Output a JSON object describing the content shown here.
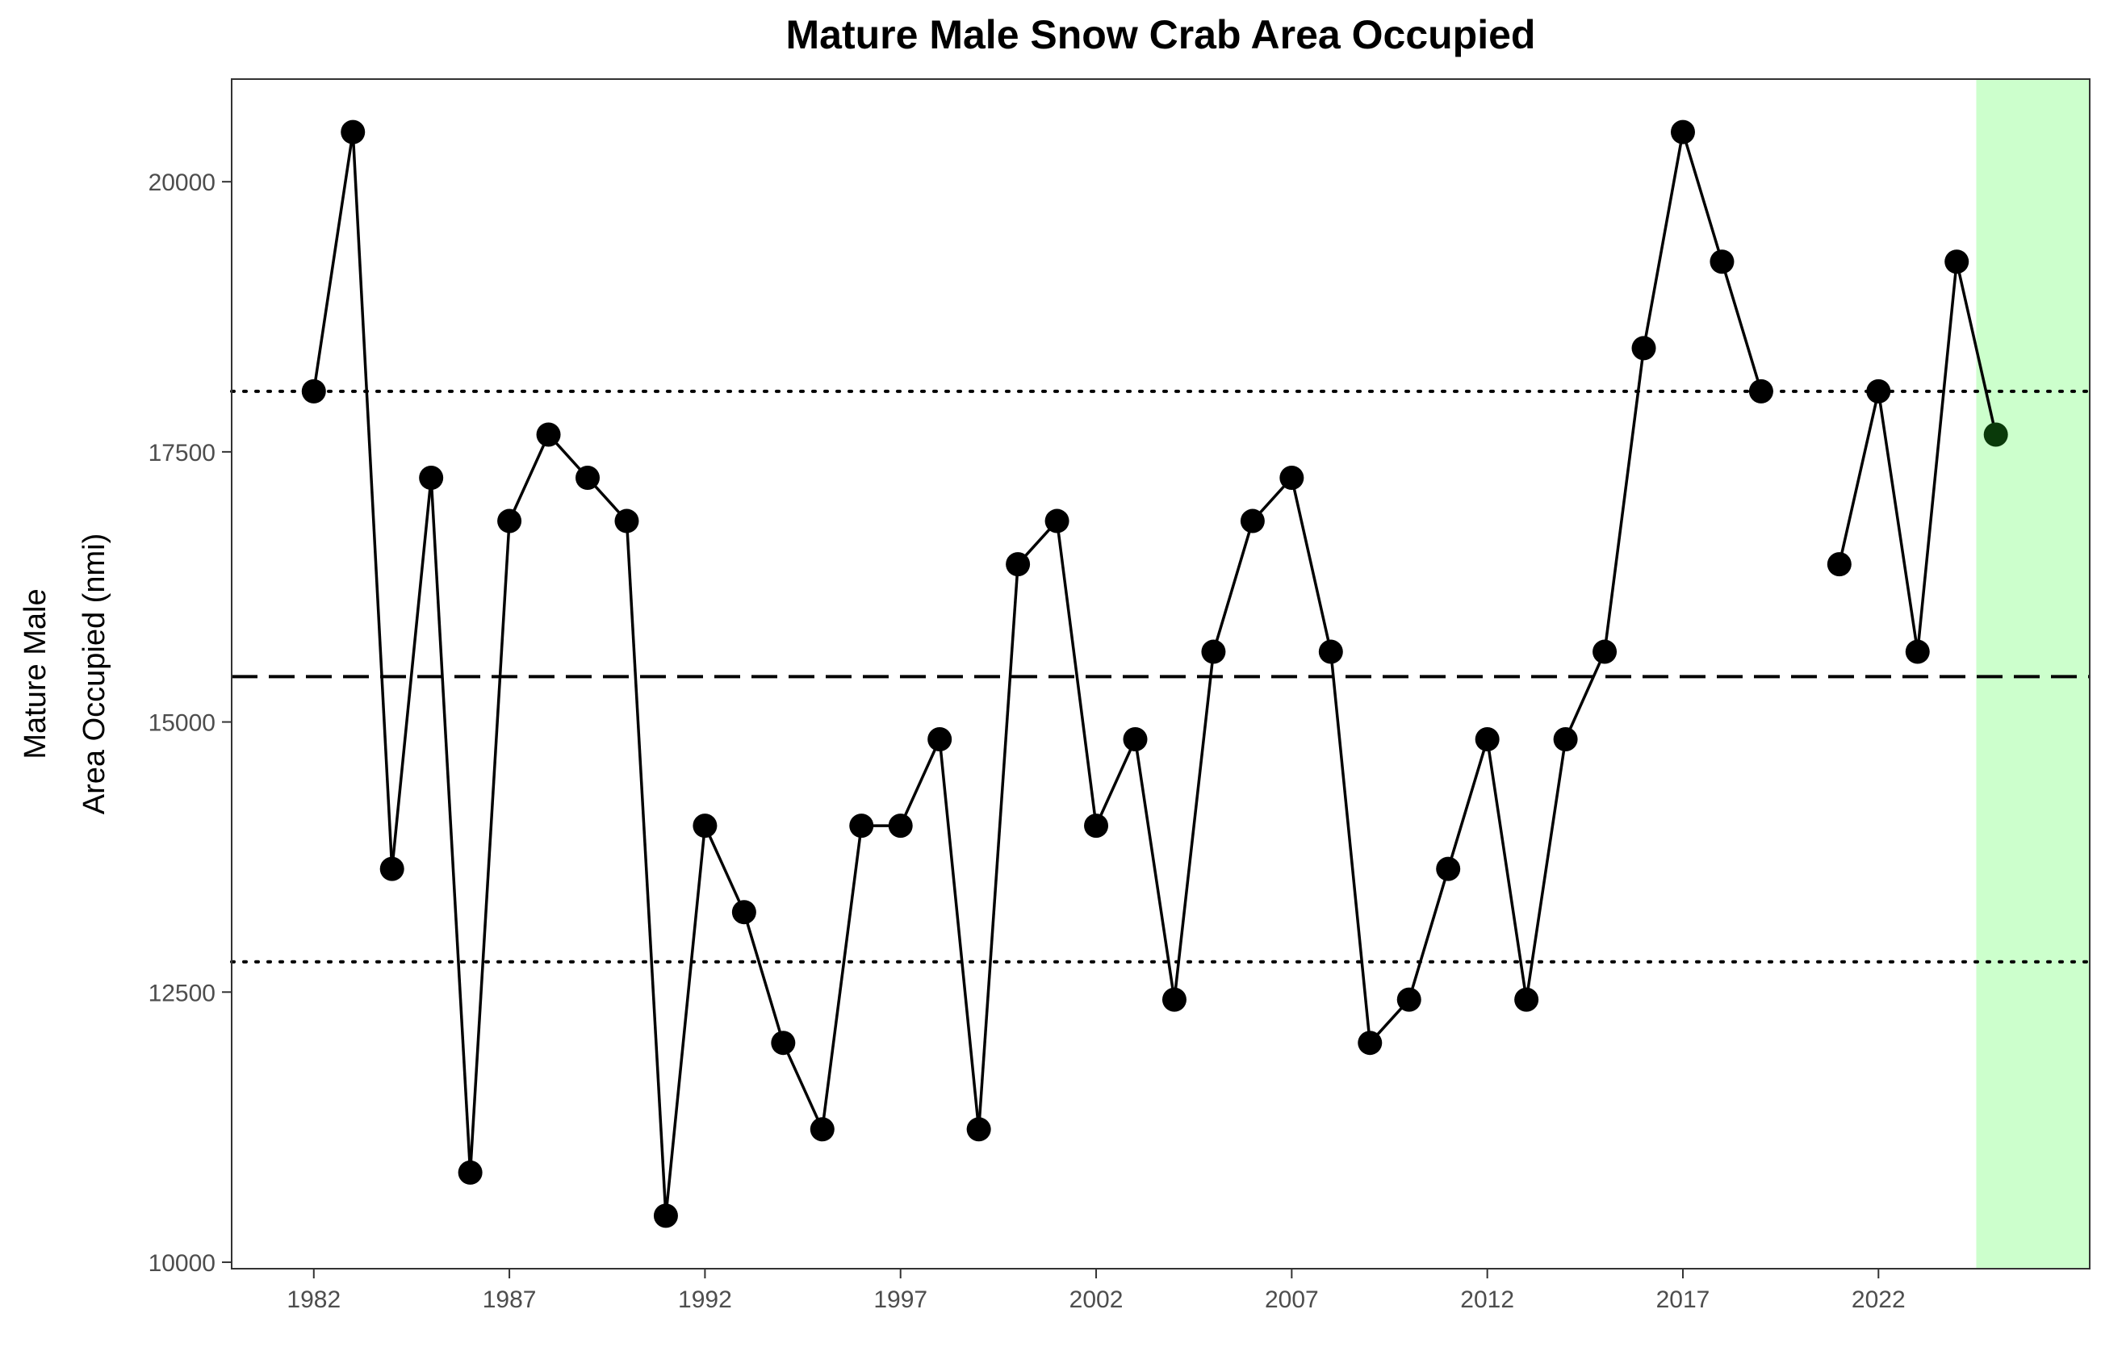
{
  "chart_data": {
    "type": "line",
    "title": "Mature Male Snow Crab Area Occupied",
    "xlabel": "",
    "ylabel_lines": [
      "Mature Male",
      "Area Occupied (nmi)"
    ],
    "xlim": [
      1979.9,
      2027.4
    ],
    "ylim": [
      9940,
      20950
    ],
    "x_ticks": [
      1982,
      1987,
      1992,
      1997,
      2002,
      2007,
      2012,
      2017,
      2022
    ],
    "y_ticks": [
      10000,
      12500,
      15000,
      17500,
      20000
    ],
    "mean_line": 15420,
    "upper_sd_line": 18060,
    "lower_sd_line": 12780,
    "highlight_range": [
      2024.5,
      2027.4
    ],
    "highlight_color": "#ccffcc",
    "line_color": "#000000",
    "point_color": "#000000",
    "latest_point_color": "#0a3a0a",
    "series": [
      {
        "x": [
          1982,
          1983,
          1984,
          1985,
          1986,
          1987,
          1988,
          1989,
          1990,
          1991,
          1992,
          1993,
          1994,
          1995,
          1996,
          1997,
          1998,
          1999,
          2000,
          2001,
          2002,
          2003,
          2004,
          2005,
          2006,
          2007,
          2008,
          2009,
          2010,
          2011,
          2012,
          2013,
          2014,
          2015,
          2016,
          2017,
          2018,
          2019,
          2020,
          2021,
          2022,
          2023,
          2024,
          2025
        ],
        "y": [
          18060,
          20460,
          13640,
          17260,
          10830,
          16860,
          17660,
          17260,
          16860,
          10430,
          14040,
          13240,
          12030,
          11230,
          14040,
          14040,
          14840,
          11230,
          16460,
          16860,
          14040,
          14840,
          12430,
          15650,
          16860,
          17260,
          15650,
          12030,
          12430,
          13640,
          14840,
          12430,
          14840,
          15650,
          18460,
          20460,
          19260,
          18060,
          null,
          16460,
          18060,
          15650,
          19260,
          17660
        ]
      }
    ]
  }
}
